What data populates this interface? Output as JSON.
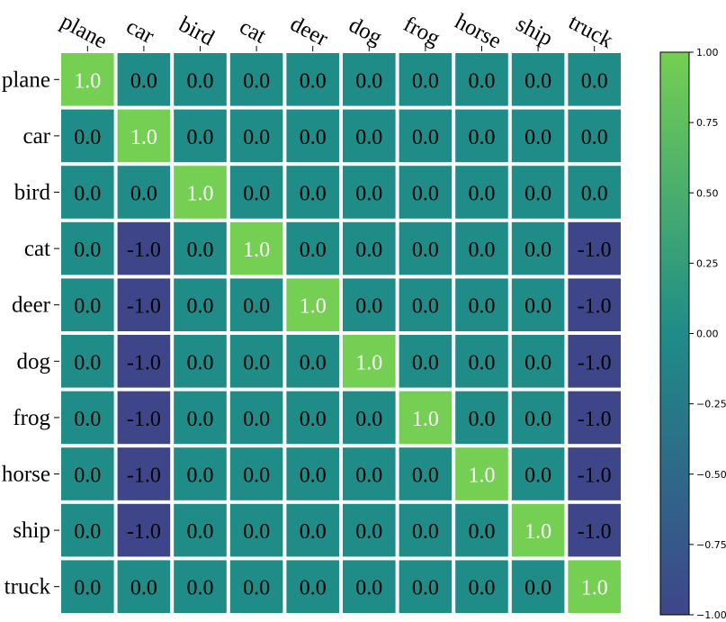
{
  "chart_data": {
    "type": "heatmap",
    "title": "",
    "xlabel": "",
    "ylabel": "",
    "x_categories": [
      "plane",
      "car",
      "bird",
      "cat",
      "deer",
      "dog",
      "frog",
      "horse",
      "ship",
      "truck"
    ],
    "y_categories": [
      "plane",
      "car",
      "bird",
      "cat",
      "deer",
      "dog",
      "frog",
      "horse",
      "ship",
      "truck"
    ],
    "values": [
      [
        "1.0",
        "0.0",
        "0.0",
        "0.0",
        "0.0",
        "0.0",
        "0.0",
        "0.0",
        "0.0",
        "0.0"
      ],
      [
        "0.0",
        "1.0",
        "0.0",
        "0.0",
        "0.0",
        "0.0",
        "0.0",
        "0.0",
        "0.0",
        "0.0"
      ],
      [
        "0.0",
        "0.0",
        "1.0",
        "0.0",
        "0.0",
        "0.0",
        "0.0",
        "0.0",
        "0.0",
        "0.0"
      ],
      [
        "0.0",
        "-1.0",
        "0.0",
        "1.0",
        "0.0",
        "0.0",
        "0.0",
        "0.0",
        "0.0",
        "-1.0"
      ],
      [
        "0.0",
        "-1.0",
        "0.0",
        "0.0",
        "1.0",
        "0.0",
        "0.0",
        "0.0",
        "0.0",
        "-1.0"
      ],
      [
        "0.0",
        "-1.0",
        "0.0",
        "0.0",
        "0.0",
        "1.0",
        "0.0",
        "0.0",
        "0.0",
        "-1.0"
      ],
      [
        "0.0",
        "-1.0",
        "0.0",
        "0.0",
        "0.0",
        "0.0",
        "1.0",
        "0.0",
        "0.0",
        "-1.0"
      ],
      [
        "0.0",
        "-1.0",
        "0.0",
        "0.0",
        "0.0",
        "0.0",
        "0.0",
        "1.0",
        "0.0",
        "-1.0"
      ],
      [
        "0.0",
        "-1.0",
        "0.0",
        "0.0",
        "0.0",
        "0.0",
        "0.0",
        "0.0",
        "1.0",
        "-1.0"
      ],
      [
        "0.0",
        "0.0",
        "0.0",
        "0.0",
        "0.0",
        "0.0",
        "0.0",
        "0.0",
        "0.0",
        "1.0"
      ]
    ],
    "value_range": [
      -1.0,
      1.0
    ],
    "colorbar": {
      "ticks": [
        "1.00",
        "0.75",
        "0.50",
        "0.25",
        "0.00",
        "−0.25",
        "−0.50",
        "−0.75",
        "−1.00"
      ],
      "tick_values": [
        1.0,
        0.75,
        0.5,
        0.25,
        0.0,
        -0.25,
        -0.5,
        -0.75,
        -1.0
      ]
    },
    "colors": {
      "min": "#3e4689",
      "mid": "#1f8c88",
      "max": "#74cf52"
    },
    "grid": false,
    "legend": "colorbar-right"
  }
}
